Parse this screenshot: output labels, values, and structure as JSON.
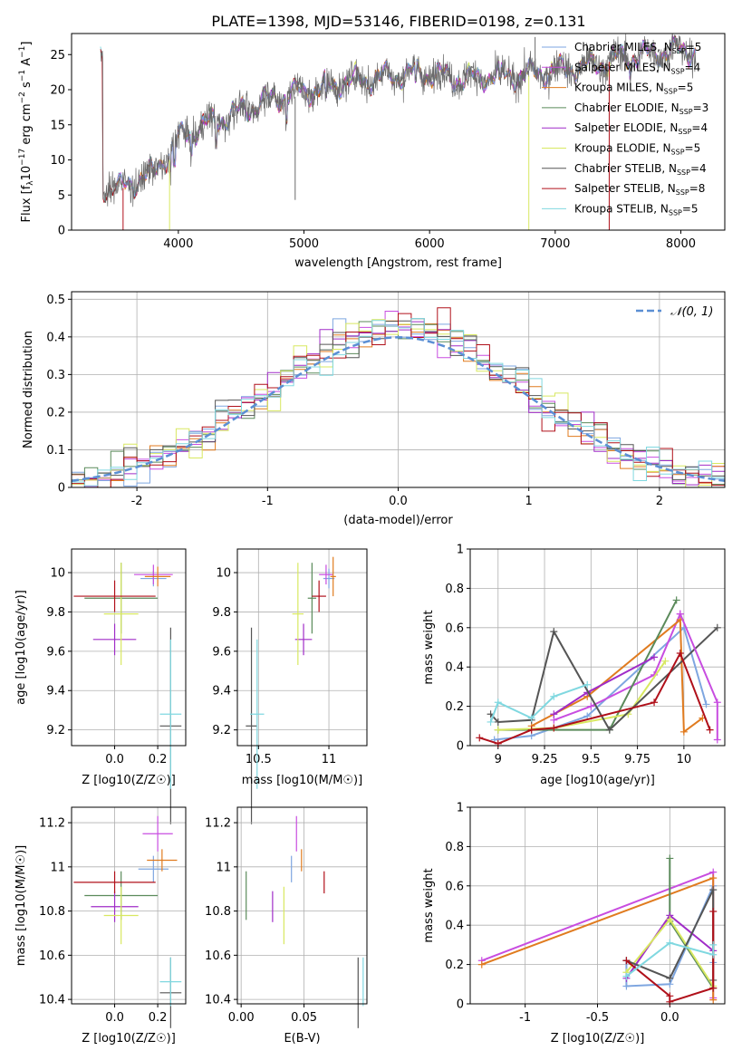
{
  "figure_title": "PLATE=1398, MJD=53146, FIBERID=0198, z=0.131",
  "model_colors": {
    "Chabrier MILES": "#7ea6e0",
    "Salpeter MILES": "#c84de0",
    "Kroupa MILES": "#e07b1f",
    "Chabrier ELODIE": "#5a8a5a",
    "Salpeter ELODIE": "#a02cc8",
    "Kroupa ELODIE": "#d8e860",
    "Chabrier STELIB": "#555555",
    "Salpeter STELIB": "#b0101a",
    "Kroupa STELIB": "#80d8e0"
  },
  "chart_data": [
    {
      "id": "spectrum",
      "type": "line",
      "xlabel": "wavelength [Angstrom, rest frame]",
      "ylabel": "Flux [f_λ10^-17 erg cm^-2 s^-1 A^-1]",
      "xlim": [
        3150,
        8350
      ],
      "ylim": [
        0,
        28
      ],
      "xticks": [
        4000,
        5000,
        6000,
        7000,
        8000
      ],
      "yticks": [
        0,
        5,
        10,
        15,
        20,
        25
      ],
      "legend_position": "upper-right",
      "series": [
        {
          "name": "Chabrier MILES",
          "nssp": "5",
          "color": "#7ea6e0"
        },
        {
          "name": "Salpeter MILES",
          "nssp": "4",
          "color": "#c84de0"
        },
        {
          "name": "Kroupa MILES",
          "nssp": "5",
          "color": "#e07b1f"
        },
        {
          "name": "Chabrier ELODIE",
          "nssp": "3",
          "color": "#5a8a5a"
        },
        {
          "name": "Salpeter ELODIE",
          "nssp": "4",
          "color": "#a02cc8"
        },
        {
          "name": "Kroupa ELODIE",
          "nssp": "5",
          "color": "#d8e860"
        },
        {
          "name": "Chabrier STELIB",
          "nssp": "4",
          "color": "#555555"
        },
        {
          "name": "Salpeter STELIB",
          "nssp": "8",
          "color": "#b0101a"
        },
        {
          "name": "Kroupa STELIB",
          "nssp": "5",
          "color": "#80d8e0"
        }
      ],
      "continuum": [
        [
          3400,
          6.2
        ],
        [
          3550,
          6.0
        ],
        [
          3700,
          7.5
        ],
        [
          3800,
          8.0
        ],
        [
          3900,
          10.5
        ],
        [
          4000,
          13.0
        ],
        [
          4100,
          14.0
        ],
        [
          4200,
          15.0
        ],
        [
          4300,
          15.5
        ],
        [
          4500,
          17.0
        ],
        [
          4700,
          18.5
        ],
        [
          4900,
          19.5
        ],
        [
          5100,
          20.0
        ],
        [
          5300,
          21.0
        ],
        [
          5500,
          21.5
        ],
        [
          5700,
          22.0
        ],
        [
          5900,
          22.5
        ],
        [
          6100,
          22.0
        ],
        [
          6300,
          21.5
        ],
        [
          6500,
          22.0
        ],
        [
          6700,
          22.0
        ],
        [
          6900,
          22.5
        ],
        [
          7100,
          23.0
        ],
        [
          7300,
          23.5
        ],
        [
          7400,
          24.0
        ],
        [
          7500,
          24.5
        ],
        [
          7700,
          25.0
        ],
        [
          7900,
          25.5
        ],
        [
          8100,
          25.5
        ]
      ]
    },
    {
      "id": "residuals",
      "type": "step",
      "xlabel": "(data-model)/error",
      "ylabel": "Normed distribution",
      "xlim": [
        -2.5,
        2.5
      ],
      "ylim": [
        0,
        0.52
      ],
      "xticks": [
        -2,
        -1,
        0,
        1,
        2
      ],
      "yticks": [
        0.0,
        0.1,
        0.2,
        0.3,
        0.4,
        0.5
      ],
      "reference_label": "𝒩(0, 1)",
      "legend_position": "upper-right",
      "grid": true
    },
    {
      "id": "age_vs_Z",
      "type": "errorbar",
      "xlabel": "Z [log10(Z/Z☉)]",
      "ylabel": "age  [log10(age/yr)]",
      "xlim": [
        -0.2,
        0.33
      ],
      "ylim": [
        9.12,
        10.12
      ],
      "xticks": [
        0.0,
        0.2
      ],
      "yticks": [
        9.2,
        9.4,
        9.6,
        9.8,
        10.0
      ],
      "grid": true,
      "points": [
        {
          "model": "Chabrier MILES",
          "x": 0.18,
          "y": 9.97,
          "xerr": 0.06,
          "yerr": 0.04
        },
        {
          "model": "Salpeter MILES",
          "x": 0.18,
          "y": 9.99,
          "xerr": 0.09,
          "yerr": 0.05
        },
        {
          "model": "Kroupa MILES",
          "x": 0.2,
          "y": 9.98,
          "xerr": 0.06,
          "yerr": 0.05
        },
        {
          "model": "Chabrier ELODIE",
          "x": 0.03,
          "y": 9.87,
          "xerr": 0.17,
          "yerr": 0.18
        },
        {
          "model": "Salpeter ELODIE",
          "x": 0.0,
          "y": 9.66,
          "xerr": 0.1,
          "yerr": 0.08
        },
        {
          "model": "Kroupa ELODIE",
          "x": 0.03,
          "y": 9.79,
          "xerr": 0.08,
          "yerr": 0.26
        },
        {
          "model": "Chabrier STELIB",
          "x": 0.26,
          "y": 9.22,
          "xerr": 0.05,
          "yerr": 0.5
        },
        {
          "model": "Salpeter STELIB",
          "x": 0.0,
          "y": 9.88,
          "xerr": 0.19,
          "yerr": 0.08
        },
        {
          "model": "Kroupa STELIB",
          "x": 0.26,
          "y": 9.28,
          "xerr": 0.05,
          "yerr": 0.38
        }
      ]
    },
    {
      "id": "age_vs_mass",
      "type": "errorbar",
      "xlabel": "mass [log10(M/M☉)]",
      "ylabel": "",
      "xlim": [
        10.35,
        11.27
      ],
      "ylim": [
        9.12,
        10.12
      ],
      "xticks": [
        10.5,
        11.0
      ],
      "yticks": [
        9.2,
        9.4,
        9.6,
        9.8,
        10.0
      ],
      "grid": true,
      "points": [
        {
          "model": "Chabrier MILES",
          "x": 11.0,
          "y": 9.97,
          "xerr": 0.04,
          "yerr": 0.05
        },
        {
          "model": "Salpeter MILES",
          "x": 10.98,
          "y": 9.99,
          "xerr": 0.05,
          "yerr": 0.05
        },
        {
          "model": "Kroupa MILES",
          "x": 11.03,
          "y": 9.98,
          "xerr": 0.02,
          "yerr": 0.1
        },
        {
          "model": "Chabrier ELODIE",
          "x": 10.88,
          "y": 9.87,
          "xerr": 0.03,
          "yerr": 0.18
        },
        {
          "model": "Salpeter ELODIE",
          "x": 10.82,
          "y": 9.66,
          "xerr": 0.06,
          "yerr": 0.08
        },
        {
          "model": "Kroupa ELODIE",
          "x": 10.78,
          "y": 9.79,
          "xerr": 0.04,
          "yerr": 0.26
        },
        {
          "model": "Chabrier STELIB",
          "x": 10.45,
          "y": 9.22,
          "xerr": 0.04,
          "yerr": 0.5
        },
        {
          "model": "Salpeter STELIB",
          "x": 10.93,
          "y": 9.88,
          "xerr": 0.05,
          "yerr": 0.08
        },
        {
          "model": "Kroupa STELIB",
          "x": 10.49,
          "y": 9.28,
          "xerr": 0.05,
          "yerr": 0.38
        }
      ]
    },
    {
      "id": "weight_vs_age",
      "type": "line",
      "xlabel": "age  [log10(age/yr)]",
      "ylabel": "mass weight",
      "xlim": [
        8.85,
        10.22
      ],
      "ylim": [
        0,
        1.0
      ],
      "xticks": [
        9.0,
        9.25,
        9.5,
        9.75,
        10.0
      ],
      "yticks": [
        0.0,
        0.2,
        0.4,
        0.6,
        0.8,
        1.0
      ],
      "grid": true,
      "series": [
        {
          "name": "Chabrier MILES",
          "x": [
            8.98,
            9.18,
            9.48,
            10.0,
            10.12
          ],
          "y": [
            0.03,
            0.05,
            0.15,
            0.6,
            0.21
          ]
        },
        {
          "name": "Salpeter MILES",
          "x": [
            9.3,
            9.5,
            9.84,
            9.98
          ],
          "y": [
            0.13,
            0.2,
            0.36,
            0.67
          ]
        },
        {
          "name": "Kroupa MILES",
          "x": [
            9.18,
            9.48,
            9.98,
            10.0,
            10.1
          ],
          "y": [
            0.1,
            0.25,
            0.64,
            0.07,
            0.14
          ]
        },
        {
          "name": "Chabrier ELODIE",
          "x": [
            9.0,
            9.6,
            9.96
          ],
          "y": [
            0.08,
            0.08,
            0.74
          ]
        },
        {
          "name": "Salpeter ELODIE",
          "x": [
            9.3,
            9.48,
            9.84
          ],
          "y": [
            0.16,
            0.27,
            0.45
          ]
        },
        {
          "name": "Kroupa ELODIE",
          "x": [
            9.0,
            9.3,
            9.7,
            9.9
          ],
          "y": [
            0.08,
            0.09,
            0.16,
            0.43
          ]
        },
        {
          "name": "Chabrier STELIB",
          "x": [
            8.96,
            9.0,
            9.18,
            9.3,
            9.6,
            10.18
          ],
          "y": [
            0.16,
            0.12,
            0.13,
            0.58,
            0.08,
            0.6
          ]
        },
        {
          "name": "Salpeter STELIB",
          "x": [
            8.9,
            9.0,
            9.18,
            9.3,
            9.84,
            9.98,
            10.14
          ],
          "y": [
            0.04,
            0.01,
            0.08,
            0.09,
            0.22,
            0.47,
            0.08
          ]
        },
        {
          "name": "Kroupa STELIB",
          "x": [
            8.96,
            9.0,
            9.18,
            9.3,
            9.48
          ],
          "y": [
            0.12,
            0.22,
            0.14,
            0.25,
            0.31
          ]
        },
        {
          "name": "Salpeter MILES",
          "x": [
            9.98,
            10.18,
            10.18
          ],
          "y": [
            0.67,
            0.22,
            0.03
          ]
        }
      ]
    },
    {
      "id": "mass_vs_Z",
      "type": "errorbar",
      "xlabel": "Z [log10(Z/Z☉)]",
      "ylabel": "mass [log10(M/M☉)]",
      "xlim": [
        -0.2,
        0.33
      ],
      "ylim": [
        10.38,
        11.27
      ],
      "xticks": [
        0.0,
        0.2
      ],
      "yticks": [
        10.4,
        10.6,
        10.8,
        11.0,
        11.2
      ],
      "grid": true,
      "points": [
        {
          "model": "Chabrier MILES",
          "x": 0.18,
          "y": 10.99,
          "xerr": 0.07,
          "yerr": 0.06
        },
        {
          "model": "Salpeter MILES",
          "x": 0.2,
          "y": 11.15,
          "xerr": 0.07,
          "yerr": 0.08
        },
        {
          "model": "Kroupa MILES",
          "x": 0.22,
          "y": 11.03,
          "xerr": 0.07,
          "yerr": 0.05
        },
        {
          "model": "Chabrier ELODIE",
          "x": 0.03,
          "y": 10.87,
          "xerr": 0.17,
          "yerr": 0.11
        },
        {
          "model": "Salpeter ELODIE",
          "x": 0.0,
          "y": 10.82,
          "xerr": 0.11,
          "yerr": 0.07
        },
        {
          "model": "Kroupa ELODIE",
          "x": 0.03,
          "y": 10.78,
          "xerr": 0.08,
          "yerr": 0.13
        },
        {
          "model": "Chabrier STELIB",
          "x": 0.26,
          "y": 10.43,
          "xerr": 0.05,
          "yerr": 0.16
        },
        {
          "model": "Salpeter STELIB",
          "x": 0.0,
          "y": 10.93,
          "xerr": 0.19,
          "yerr": 0.05
        },
        {
          "model": "Kroupa STELIB",
          "x": 0.26,
          "y": 10.48,
          "xerr": 0.05,
          "yerr": 0.11
        }
      ]
    },
    {
      "id": "mass_vs_EBV",
      "type": "errorbar",
      "xlabel": "E(B-V)",
      "ylabel": "",
      "xlim": [
        -0.003,
        0.1
      ],
      "ylim": [
        10.38,
        11.27
      ],
      "xticks": [
        0.0,
        0.05
      ],
      "xtick_labels": [
        "0.00",
        "0.05"
      ],
      "yticks": [
        10.4,
        10.6,
        10.8,
        11.0,
        11.2
      ],
      "grid": true,
      "points": [
        {
          "model": "Chabrier MILES",
          "x": 0.04,
          "y": 10.99,
          "yerr": 0.06
        },
        {
          "model": "Salpeter MILES",
          "x": 0.044,
          "y": 11.15,
          "yerr": 0.08
        },
        {
          "model": "Kroupa MILES",
          "x": 0.048,
          "y": 11.03,
          "yerr": 0.05
        },
        {
          "model": "Chabrier ELODIE",
          "x": 0.004,
          "y": 10.87,
          "yerr": 0.11
        },
        {
          "model": "Salpeter ELODIE",
          "x": 0.025,
          "y": 10.82,
          "yerr": 0.07
        },
        {
          "model": "Kroupa ELODIE",
          "x": 0.034,
          "y": 10.78,
          "yerr": 0.13
        },
        {
          "model": "Chabrier STELIB",
          "x": 0.093,
          "y": 10.43,
          "yerr": 0.16
        },
        {
          "model": "Salpeter STELIB",
          "x": 0.066,
          "y": 10.93,
          "yerr": 0.05
        },
        {
          "model": "Kroupa STELIB",
          "x": 0.097,
          "y": 10.48,
          "yerr": 0.11
        }
      ]
    },
    {
      "id": "weight_vs_Z",
      "type": "line",
      "xlabel": "Z [log10(Z/Z☉)]",
      "ylabel": "mass weight",
      "xlim": [
        -1.38,
        0.38
      ],
      "ylim": [
        0,
        1.0
      ],
      "xticks": [
        -1.0,
        -0.5,
        0.0
      ],
      "yticks": [
        0.0,
        0.2,
        0.4,
        0.6,
        0.8,
        1.0
      ],
      "grid": true,
      "series": [
        {
          "name": "Chabrier MILES",
          "x": [
            -0.3,
            -0.3,
            0.0,
            0.3,
            0.3
          ],
          "y": [
            0.22,
            0.09,
            0.1,
            0.6,
            0.21
          ]
        },
        {
          "name": "Salpeter MILES",
          "x": [
            -1.3,
            0.3,
            0.3
          ],
          "y": [
            0.22,
            0.67,
            0.03
          ]
        },
        {
          "name": "Kroupa MILES",
          "x": [
            -1.3,
            0.3,
            0.3
          ],
          "y": [
            0.2,
            0.64,
            0.02
          ]
        },
        {
          "name": "Chabrier ELODIE",
          "x": [
            0.0,
            0.0,
            0.3
          ],
          "y": [
            0.74,
            0.42,
            0.08
          ]
        },
        {
          "name": "Salpeter ELODIE",
          "x": [
            -0.3,
            0.0,
            0.3
          ],
          "y": [
            0.13,
            0.45,
            0.27
          ]
        },
        {
          "name": "Kroupa ELODIE",
          "x": [
            -0.3,
            0.0,
            0.3
          ],
          "y": [
            0.16,
            0.43,
            0.09
          ]
        },
        {
          "name": "Chabrier STELIB",
          "x": [
            -0.3,
            0.0,
            0.3,
            0.3
          ],
          "y": [
            0.22,
            0.13,
            0.58,
            0.12
          ]
        },
        {
          "name": "Salpeter STELIB",
          "x": [
            -0.3,
            0.0,
            0.0,
            0.3,
            0.3
          ],
          "y": [
            0.22,
            0.04,
            0.01,
            0.08,
            0.47
          ]
        },
        {
          "name": "Kroupa STELIB",
          "x": [
            -0.3,
            0.0,
            0.3,
            0.3
          ],
          "y": [
            0.14,
            0.31,
            0.25,
            0.3
          ]
        }
      ]
    }
  ]
}
